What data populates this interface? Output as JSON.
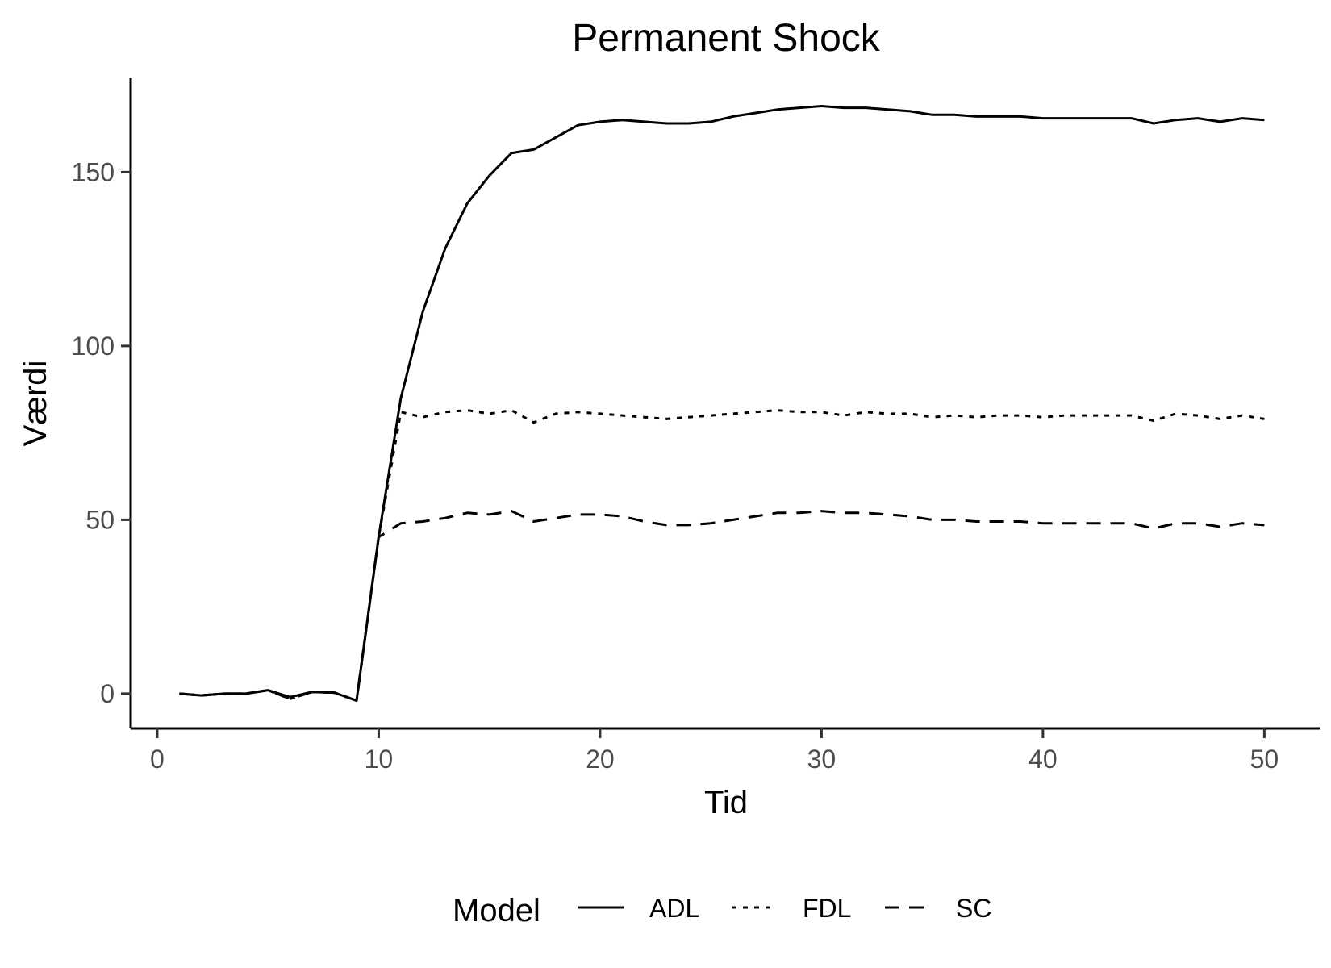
{
  "chart_data": {
    "type": "line",
    "title": "Permanent Shock",
    "xlabel": "Tid",
    "ylabel": "Værdi",
    "xlim": [
      -1.2,
      52.5
    ],
    "ylim": [
      -10,
      177
    ],
    "xticks": [
      0,
      10,
      20,
      30,
      40,
      50
    ],
    "yticks": [
      0,
      50,
      100,
      150
    ],
    "grid": false,
    "legend": {
      "title": "Model",
      "position": "bottom"
    },
    "x": [
      1,
      2,
      3,
      4,
      5,
      6,
      7,
      8,
      9,
      10,
      11,
      12,
      13,
      14,
      15,
      16,
      17,
      18,
      19,
      20,
      21,
      22,
      23,
      24,
      25,
      26,
      27,
      28,
      29,
      30,
      31,
      32,
      33,
      34,
      35,
      36,
      37,
      38,
      39,
      40,
      41,
      42,
      43,
      44,
      45,
      46,
      47,
      48,
      49,
      50
    ],
    "series": [
      {
        "name": "ADL",
        "linestyle": "solid",
        "color": "#000000",
        "values": [
          0,
          -0.5,
          0,
          0,
          1,
          -1,
          0.5,
          0.3,
          -2,
          45,
          85,
          110,
          128,
          141,
          149,
          155.5,
          156.5,
          160,
          163.5,
          164.5,
          165,
          164.5,
          164,
          164,
          164.5,
          166,
          167,
          168,
          168.5,
          169,
          168.5,
          168.5,
          168,
          167.5,
          166.5,
          166.5,
          166,
          166,
          166,
          165.5,
          165.5,
          165.5,
          165.5,
          165.5,
          164,
          165,
          165.5,
          164.5,
          165.5,
          165
        ]
      },
      {
        "name": "FDL",
        "linestyle": "dotted",
        "color": "#000000",
        "values": [
          0,
          -0.5,
          0,
          0,
          1,
          -1.5,
          0.5,
          0.3,
          -2,
          45,
          81,
          79.5,
          81,
          81.5,
          80.5,
          81.5,
          78,
          80.5,
          81,
          80.5,
          80,
          79.5,
          79,
          79.5,
          80,
          80.5,
          81,
          81.5,
          81,
          81,
          80,
          81,
          80.5,
          80.5,
          79.5,
          80,
          79.5,
          80,
          80,
          79.5,
          80,
          80,
          80,
          80,
          78.5,
          80.5,
          80,
          79,
          80,
          79
        ]
      },
      {
        "name": "SC",
        "linestyle": "dashed",
        "color": "#000000",
        "values": [
          0,
          -0.5,
          0,
          0,
          1,
          -1.5,
          0.5,
          0.3,
          -2,
          45,
          49,
          49.5,
          50.5,
          52,
          51.5,
          52.5,
          49.5,
          50.5,
          51.5,
          51.5,
          51,
          49.5,
          48.5,
          48.5,
          49,
          50,
          51,
          52,
          52,
          52.5,
          52,
          52,
          51.5,
          51,
          50,
          50,
          49.5,
          49.5,
          49.5,
          49,
          49,
          49,
          49,
          49,
          47.5,
          49,
          49,
          48,
          49,
          48.5
        ]
      }
    ]
  }
}
